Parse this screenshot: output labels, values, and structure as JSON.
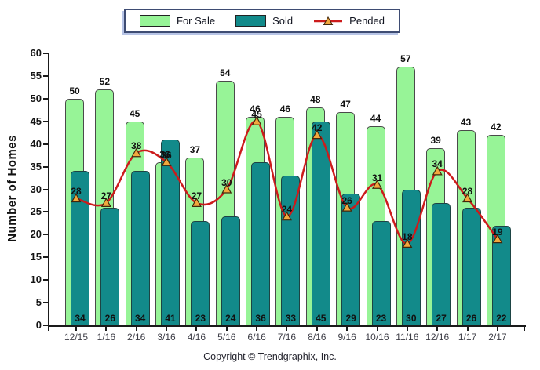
{
  "legend": {
    "items": [
      {
        "label": "For Sale",
        "type": "box"
      },
      {
        "label": "Sold",
        "type": "box"
      },
      {
        "label": "Pended",
        "type": "line"
      }
    ]
  },
  "chart_data": {
    "type": "bar",
    "title": "",
    "categories": [
      "12/15",
      "1/16",
      "2/16",
      "3/16",
      "4/16",
      "5/16",
      "6/16",
      "7/16",
      "8/16",
      "9/16",
      "10/16",
      "11/16",
      "12/16",
      "1/17",
      "2/17"
    ],
    "series": [
      {
        "name": "For Sale",
        "type": "bar",
        "color": "#97F497",
        "border_color": "#4a4a4a",
        "values": [
          50,
          52,
          45,
          36,
          37,
          54,
          46,
          46,
          48,
          47,
          44,
          57,
          39,
          43,
          42
        ]
      },
      {
        "name": "Sold",
        "type": "bar",
        "color": "#128A8A",
        "border_color": "#1d4444",
        "values": [
          34,
          26,
          34,
          41,
          23,
          24,
          36,
          33,
          45,
          29,
          23,
          30,
          27,
          26,
          22
        ]
      },
      {
        "name": "Pended",
        "type": "line",
        "color": "#CC1B1B",
        "marker": "triangle",
        "marker_color": "#F2A83E",
        "marker_border_color": "#42270a",
        "values": [
          28,
          27,
          38,
          36,
          27,
          30,
          45,
          24,
          42,
          26,
          31,
          18,
          34,
          28,
          19
        ]
      }
    ],
    "xlabel": "",
    "ylabel": "Number of Homes",
    "ylim": [
      0,
      60
    ],
    "ytick_step": 5,
    "grid": false,
    "legend_position": "top-center"
  },
  "footer": {
    "copyright": "Copyright © Trendgraphix, Inc."
  }
}
